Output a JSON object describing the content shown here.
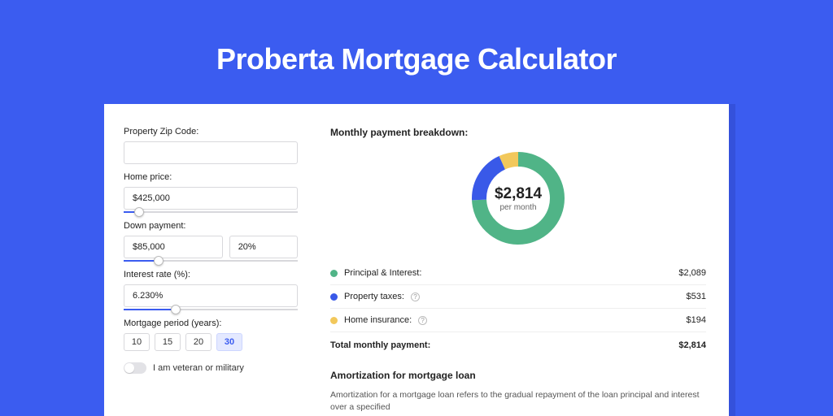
{
  "page": {
    "title": "Proberta Mortgage Calculator",
    "background_color": "#3b5cf0"
  },
  "form": {
    "zip": {
      "label": "Property Zip Code:",
      "value": ""
    },
    "price": {
      "label": "Home price:",
      "value": "$425,000",
      "slider_pct": 9
    },
    "down": {
      "label": "Down payment:",
      "amount": "$85,000",
      "pct": "20%",
      "slider_pct": 20
    },
    "rate": {
      "label": "Interest rate (%):",
      "value": "6.230%",
      "slider_pct": 30
    },
    "period": {
      "label": "Mortgage period (years):",
      "options": [
        "10",
        "15",
        "20",
        "30"
      ],
      "selected": "30"
    },
    "veteran_label": "I am veteran or military"
  },
  "breakdown": {
    "title": "Monthly payment breakdown:",
    "center_value": "$2,814",
    "center_sub": "per month",
    "donut": {
      "radius": 48,
      "stroke": 18,
      "slices": [
        {
          "key": "pi",
          "color": "#50b487",
          "pct": 74.2
        },
        {
          "key": "tax",
          "color": "#3959e8",
          "pct": 18.9
        },
        {
          "key": "ins",
          "color": "#f2c85b",
          "pct": 6.9
        }
      ]
    },
    "rows": [
      {
        "label": "Principal & Interest:",
        "color": "#50b487",
        "value": "$2,089",
        "help": false
      },
      {
        "label": "Property taxes:",
        "color": "#3959e8",
        "value": "$531",
        "help": true
      },
      {
        "label": "Home insurance:",
        "color": "#f2c85b",
        "value": "$194",
        "help": true
      }
    ],
    "total_label": "Total monthly payment:",
    "total_value": "$2,814"
  },
  "amortization": {
    "title": "Amortization for mortgage loan",
    "body": "Amortization for a mortgage loan refers to the gradual repayment of the loan principal and interest over a specified"
  }
}
